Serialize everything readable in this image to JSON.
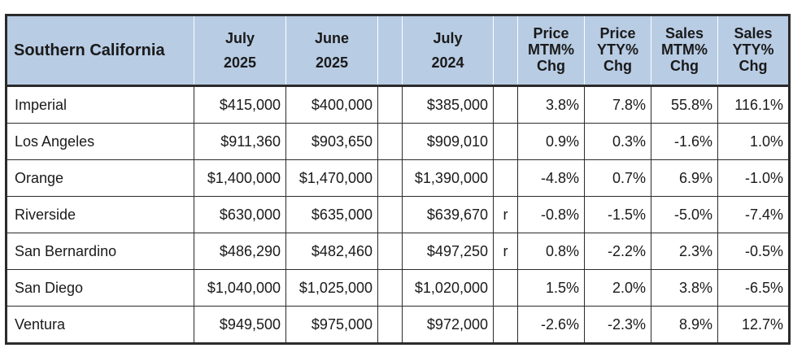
{
  "header": {
    "region": "Southern California",
    "col1": [
      "July",
      "2025"
    ],
    "col2": [
      "June",
      "2025"
    ],
    "col3": [
      "July",
      "2024"
    ],
    "col4": [
      "Price",
      "MTM%",
      "Chg"
    ],
    "col5": [
      "Price",
      "YTY%",
      "Chg"
    ],
    "col6": [
      "Sales",
      "MTM%",
      "Chg"
    ],
    "col7": [
      "Sales",
      "YTY%",
      "Chg"
    ]
  },
  "rows": [
    {
      "region": "Imperial",
      "jul2025": "$415,000",
      "jun2025": "$400,000",
      "jul2024": "$385,000",
      "flag": "",
      "price_mtm": "3.8%",
      "price_yty": "7.8%",
      "sales_mtm": "55.8%",
      "sales_yty": "116.1%"
    },
    {
      "region": "Los Angeles",
      "jul2025": "$911,360",
      "jun2025": "$903,650",
      "jul2024": "$909,010",
      "flag": "",
      "price_mtm": "0.9%",
      "price_yty": "0.3%",
      "sales_mtm": "-1.6%",
      "sales_yty": "1.0%"
    },
    {
      "region": "Orange",
      "jul2025": "$1,400,000",
      "jun2025": "$1,470,000",
      "jul2024": "$1,390,000",
      "flag": "",
      "price_mtm": "-4.8%",
      "price_yty": "0.7%",
      "sales_mtm": "6.9%",
      "sales_yty": "-1.0%"
    },
    {
      "region": "Riverside",
      "jul2025": "$630,000",
      "jun2025": "$635,000",
      "jul2024": "$639,670",
      "flag": "r",
      "price_mtm": "-0.8%",
      "price_yty": "-1.5%",
      "sales_mtm": "-5.0%",
      "sales_yty": "-7.4%"
    },
    {
      "region": "San Bernardino",
      "jul2025": "$486,290",
      "jun2025": "$482,460",
      "jul2024": "$497,250",
      "flag": "r",
      "price_mtm": "0.8%",
      "price_yty": "-2.2%",
      "sales_mtm": "2.3%",
      "sales_yty": "-0.5%"
    },
    {
      "region": "San Diego",
      "jul2025": "$1,040,000",
      "jun2025": "$1,025,000",
      "jul2024": "$1,020,000",
      "flag": "",
      "price_mtm": "1.5%",
      "price_yty": "2.0%",
      "sales_mtm": "3.8%",
      "sales_yty": "-6.5%"
    },
    {
      "region": "Ventura",
      "jul2025": "$949,500",
      "jun2025": "$975,000",
      "jul2024": "$972,000",
      "flag": "",
      "price_mtm": "-2.6%",
      "price_yty": "-2.3%",
      "sales_mtm": "8.9%",
      "sales_yty": "12.7%"
    }
  ]
}
